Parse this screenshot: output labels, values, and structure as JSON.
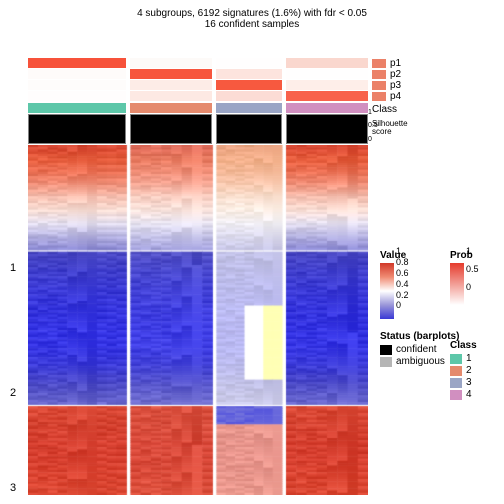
{
  "titles": {
    "line1": "4 subgroups, 6192 signatures (1.6%) with fdr < 0.05",
    "line2": "16 confident samples",
    "title_fontsize": 11
  },
  "heatmap": {
    "column_groups": [
      {
        "id": "cg1",
        "weight": 1.2,
        "class_color": "#5dc7a9"
      },
      {
        "id": "cg2",
        "weight": 1.0,
        "class_color": "#e58a6d"
      },
      {
        "id": "cg3",
        "weight": 0.8,
        "class_color": "#9aa5c5"
      },
      {
        "id": "cg4",
        "weight": 1.0,
        "class_color": "#d18fc0"
      }
    ],
    "prob_rows": [
      {
        "key": "p1",
        "swatch": "#eb8168",
        "cells": [
          [
            "#f7523a",
            1
          ],
          [
            "#fdfaf8",
            1
          ],
          [
            "#fffefe",
            1
          ],
          [
            "#fad7ce",
            1
          ]
        ]
      },
      {
        "key": "p2",
        "swatch": "#eb8168",
        "cells": [
          [
            "#fefbfa",
            1
          ],
          [
            "#f7553d",
            1
          ],
          [
            "#fde4de",
            1
          ],
          [
            "#fffefe",
            1
          ]
        ]
      },
      {
        "key": "p3",
        "swatch": "#eb8168",
        "cells": [
          [
            "#fefcfb",
            1
          ],
          [
            "#fdece7",
            1
          ],
          [
            "#f7593f",
            1
          ],
          [
            "#feeee9",
            1
          ]
        ]
      },
      {
        "key": "p4",
        "swatch": "#eb8168",
        "cells": [
          [
            "#fffdfd",
            1
          ],
          [
            "#fde9e3",
            1
          ],
          [
            "#fcdcd5",
            1
          ],
          [
            "#f8624c",
            1
          ]
        ]
      }
    ],
    "class_row_label": "Class",
    "silhouette": {
      "label": "Silhouette\nscore",
      "bar_fill": "#000000",
      "frame": "#808080",
      "ticks": [
        "1",
        "0.5",
        "0"
      ]
    },
    "row_sections": [
      {
        "label": "1",
        "weight": 0.3,
        "base_profile": [
          {
            "c": "#d94833",
            "g": 0
          },
          {
            "c": "#e65b3a",
            "g": 1
          },
          {
            "c": "#ec7054",
            "g": 1
          },
          {
            "c": "#f3937c",
            "g": 2
          },
          {
            "c": "#f8c2b3",
            "g": 2
          },
          {
            "c": "#faded5",
            "g": 3
          },
          {
            "c": "#e5e0f0",
            "g": 3
          },
          {
            "c": "#b8b5e2",
            "g": 3
          },
          {
            "c": "#8f8dd6",
            "g": 3
          }
        ],
        "group_tints": [
          [
            0,
            0,
            0
          ],
          [
            0.2,
            0.15,
            0.6
          ],
          [
            0.35,
            0.3,
            0.55
          ],
          [
            0.0,
            0.05,
            0.05
          ]
        ]
      },
      {
        "label": "2",
        "weight": 0.44,
        "base_profile": [
          {
            "c": "#4a48c4",
            "g": 0
          },
          {
            "c": "#3f3ecd",
            "g": 0
          },
          {
            "c": "#3a39d6",
            "g": 0
          },
          {
            "c": "#3635de",
            "g": 0
          },
          {
            "c": "#3534e4",
            "g": 0
          },
          {
            "c": "#3534e4",
            "g": 0
          },
          {
            "c": "#3b3ad8",
            "g": 0
          },
          {
            "c": "#4d4bc8",
            "g": 0
          },
          {
            "c": "#6a68cf",
            "g": 1
          }
        ],
        "group_tints": [
          [
            0,
            0,
            0
          ],
          [
            0.05,
            0.05,
            0.05
          ],
          [
            0.55,
            0.35,
            0.1
          ],
          [
            0.0,
            0.0,
            0.0
          ]
        ],
        "g3_right_band": true
      },
      {
        "label": "3",
        "weight": 0.26,
        "base_profile": [
          {
            "c": "#dc4936",
            "g": 0
          },
          {
            "c": "#d84432",
            "g": 0
          },
          {
            "c": "#d63f2f",
            "g": 0
          },
          {
            "c": "#d8402f",
            "g": 0
          },
          {
            "c": "#db4431",
            "g": 0
          },
          {
            "c": "#de4a35",
            "g": 0
          }
        ],
        "group_tints": [
          [
            0,
            0,
            0
          ],
          [
            0.05,
            0.05,
            -0.02
          ],
          [
            0.45,
            0.4,
            0.6
          ],
          [
            0.0,
            -0.02,
            -0.02
          ]
        ],
        "top_blue_band_g3": true
      }
    ],
    "cols_per_group": [
      10,
      8,
      7,
      8
    ]
  },
  "legends": {
    "value": {
      "title": "Value",
      "stops": [
        {
          "p": 0,
          "c": "#d13828"
        },
        {
          "p": 0.25,
          "c": "#f08b73"
        },
        {
          "p": 0.5,
          "c": "#ffffff"
        },
        {
          "p": 0.75,
          "c": "#9a96d9"
        },
        {
          "p": 1,
          "c": "#3a38d5"
        }
      ],
      "ticks": [
        "1",
        "0.8",
        "0.6",
        "0.4",
        "0.2",
        "0"
      ]
    },
    "status": {
      "title": "Status (barplots)",
      "items": [
        {
          "label": "confident",
          "color": "#000000"
        },
        {
          "label": "ambiguous",
          "color": "#b5b5b5"
        }
      ]
    },
    "prob": {
      "title": "Prob",
      "stops": [
        {
          "p": 0,
          "c": "#e53b2c"
        },
        {
          "p": 1,
          "c": "#ffffff"
        }
      ],
      "ticks": [
        "1",
        "0.5",
        "0"
      ]
    },
    "class": {
      "title": "Class",
      "items": [
        {
          "label": "1",
          "color": "#5dc7a9"
        },
        {
          "label": "2",
          "color": "#e58a6d"
        },
        {
          "label": "3",
          "color": "#9aa5c5"
        },
        {
          "label": "4",
          "color": "#d18fc0"
        }
      ]
    }
  }
}
